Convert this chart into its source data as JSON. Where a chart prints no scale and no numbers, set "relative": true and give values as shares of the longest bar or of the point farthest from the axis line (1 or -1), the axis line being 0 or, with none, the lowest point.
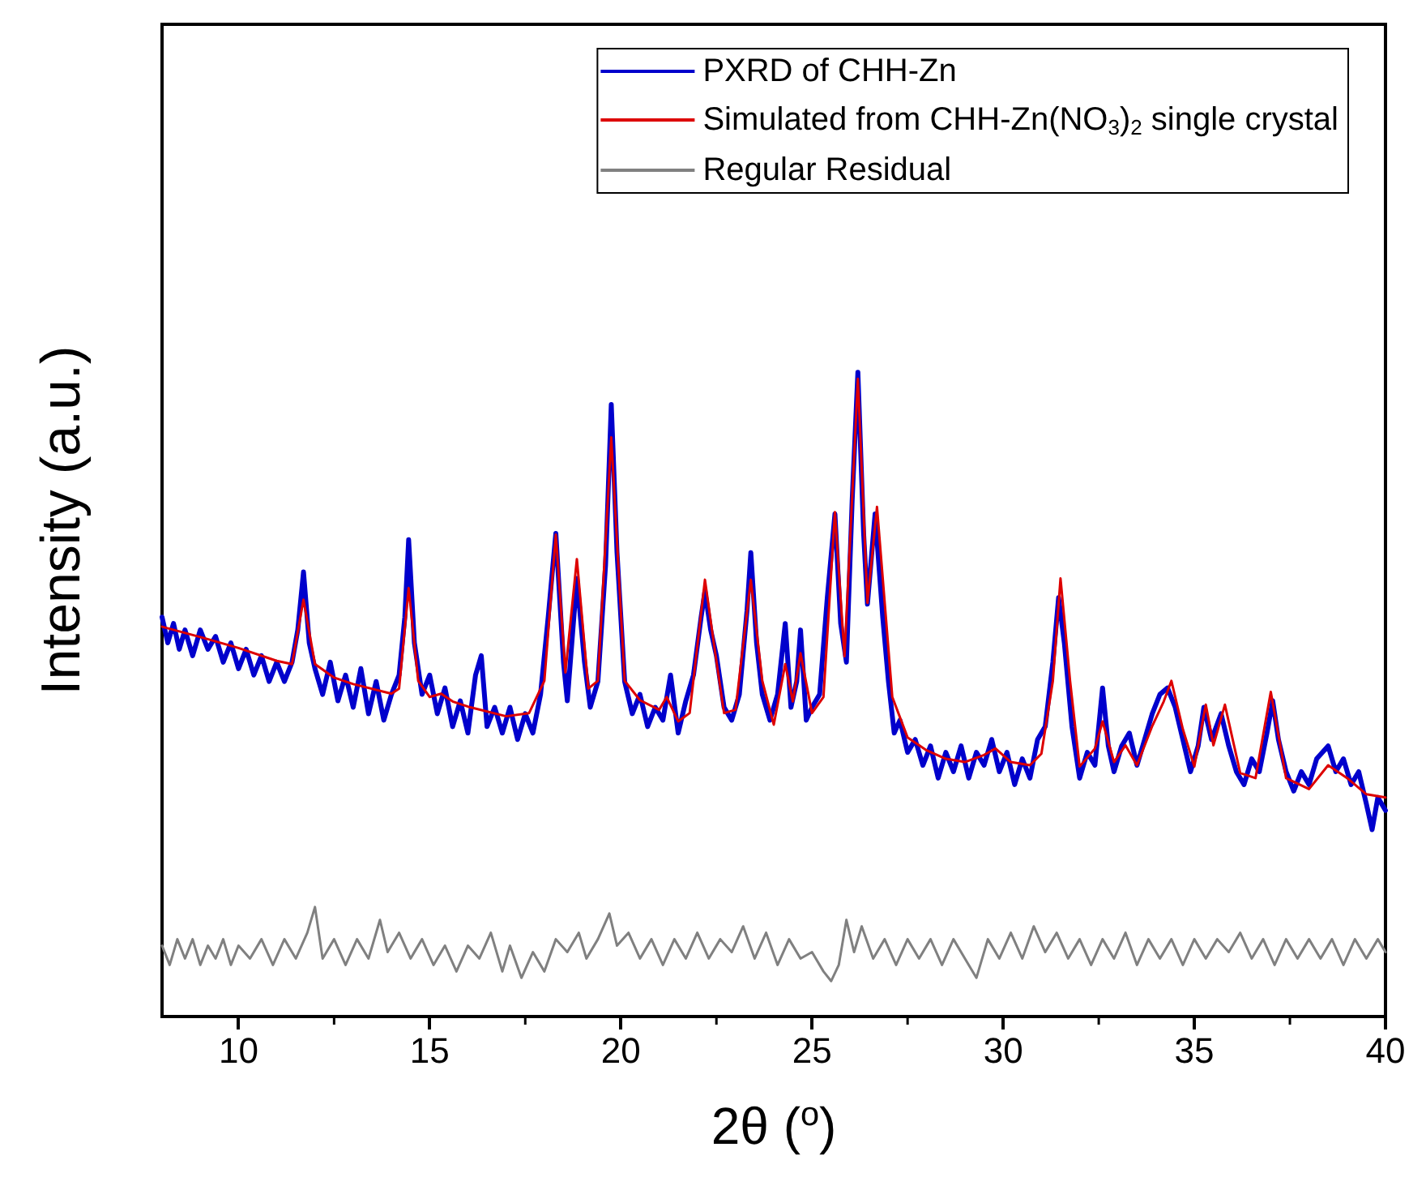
{
  "chart_data": {
    "type": "line",
    "xlabel": "2θ ($^{o}$)",
    "ylabel": "Intensity (a.u.)",
    "relative": true,
    "xlim": [
      8,
      40
    ],
    "xticks": [
      10,
      15,
      20,
      25,
      30,
      35,
      40
    ],
    "legend": "top right",
    "marker": "none",
    "line_style": "solid",
    "series": [
      {
        "name": "PXRD of CHH-Zn",
        "color": "#0000cc",
        "x": [
          8.0,
          8.15,
          8.3,
          8.45,
          8.6,
          8.8,
          9.0,
          9.2,
          9.4,
          9.6,
          9.8,
          10.0,
          10.2,
          10.4,
          10.6,
          10.8,
          11.0,
          11.2,
          11.4,
          11.55,
          11.7,
          11.85,
          12.0,
          12.2,
          12.4,
          12.6,
          12.8,
          13.0,
          13.2,
          13.4,
          13.6,
          13.8,
          14.0,
          14.2,
          14.35,
          14.45,
          14.6,
          14.8,
          15.0,
          15.2,
          15.4,
          15.6,
          15.8,
          16.0,
          16.2,
          16.35,
          16.5,
          16.7,
          16.9,
          17.1,
          17.3,
          17.5,
          17.7,
          17.9,
          18.1,
          18.3,
          18.5,
          18.6,
          18.85,
          19.05,
          19.2,
          19.4,
          19.6,
          19.75,
          19.9,
          20.1,
          20.3,
          20.5,
          20.7,
          20.9,
          21.1,
          21.3,
          21.5,
          21.7,
          21.9,
          22.1,
          22.2,
          22.35,
          22.5,
          22.7,
          22.9,
          23.1,
          23.3,
          23.4,
          23.55,
          23.7,
          23.9,
          24.1,
          24.3,
          24.45,
          24.6,
          24.7,
          24.85,
          25.0,
          25.2,
          25.4,
          25.6,
          25.75,
          25.9,
          26.05,
          26.2,
          26.35,
          26.45,
          26.65,
          26.85,
          27.0,
          27.15,
          27.3,
          27.5,
          27.7,
          27.9,
          28.1,
          28.3,
          28.5,
          28.7,
          28.9,
          29.1,
          29.3,
          29.5,
          29.7,
          29.9,
          30.1,
          30.3,
          30.5,
          30.7,
          30.9,
          31.1,
          31.3,
          31.45,
          31.6,
          31.8,
          32.0,
          32.2,
          32.4,
          32.6,
          32.75,
          32.9,
          33.1,
          33.3,
          33.5,
          33.7,
          33.9,
          34.1,
          34.3,
          34.5,
          34.7,
          34.9,
          35.1,
          35.25,
          35.45,
          35.7,
          35.9,
          36.1,
          36.3,
          36.5,
          36.7,
          36.9,
          37.05,
          37.2,
          37.4,
          37.6,
          37.8,
          38.0,
          38.2,
          38.5,
          38.7,
          38.9,
          39.1,
          39.3,
          39.5,
          39.65,
          39.8,
          40.0
        ],
        "values": [
          0.62,
          0.58,
          0.61,
          0.57,
          0.6,
          0.56,
          0.6,
          0.57,
          0.59,
          0.55,
          0.58,
          0.54,
          0.57,
          0.53,
          0.56,
          0.52,
          0.55,
          0.52,
          0.55,
          0.6,
          0.69,
          0.58,
          0.54,
          0.5,
          0.55,
          0.49,
          0.53,
          0.48,
          0.54,
          0.47,
          0.52,
          0.46,
          0.5,
          0.53,
          0.62,
          0.74,
          0.58,
          0.5,
          0.53,
          0.47,
          0.51,
          0.45,
          0.49,
          0.44,
          0.53,
          0.56,
          0.45,
          0.48,
          0.44,
          0.48,
          0.43,
          0.47,
          0.44,
          0.5,
          0.62,
          0.75,
          0.55,
          0.49,
          0.68,
          0.55,
          0.48,
          0.52,
          0.7,
          0.95,
          0.72,
          0.52,
          0.47,
          0.5,
          0.45,
          0.48,
          0.46,
          0.53,
          0.44,
          0.49,
          0.53,
          0.62,
          0.66,
          0.6,
          0.56,
          0.48,
          0.46,
          0.5,
          0.63,
          0.72,
          0.58,
          0.5,
          0.46,
          0.5,
          0.61,
          0.48,
          0.52,
          0.6,
          0.46,
          0.48,
          0.5,
          0.65,
          0.78,
          0.61,
          0.55,
          0.8,
          1.0,
          0.75,
          0.64,
          0.78,
          0.62,
          0.52,
          0.44,
          0.46,
          0.41,
          0.43,
          0.39,
          0.42,
          0.37,
          0.41,
          0.38,
          0.42,
          0.37,
          0.41,
          0.39,
          0.43,
          0.38,
          0.41,
          0.36,
          0.4,
          0.37,
          0.43,
          0.45,
          0.55,
          0.65,
          0.58,
          0.45,
          0.37,
          0.41,
          0.39,
          0.51,
          0.42,
          0.38,
          0.42,
          0.44,
          0.39,
          0.43,
          0.47,
          0.5,
          0.51,
          0.48,
          0.43,
          0.38,
          0.42,
          0.48,
          0.43,
          0.47,
          0.42,
          0.38,
          0.36,
          0.4,
          0.38,
          0.44,
          0.49,
          0.43,
          0.38,
          0.35,
          0.38,
          0.36,
          0.4,
          0.42,
          0.38,
          0.4,
          0.36,
          0.38,
          0.33,
          0.29,
          0.34,
          0.32
        ]
      },
      {
        "name": "Simulated from CHH-Zn(NO$_{3}$)$_{2}$ single crystal",
        "color": "#dd0000",
        "x": [
          8,
          9,
          10,
          11,
          11.4,
          11.7,
          12.0,
          12.5,
          13,
          14,
          14.2,
          14.45,
          14.7,
          15.0,
          15.3,
          15.6,
          16,
          17,
          17.6,
          18.0,
          18.3,
          18.55,
          18.85,
          19.15,
          19.4,
          19.75,
          20.1,
          20.5,
          21,
          21.2,
          21.5,
          21.8,
          22.2,
          22.45,
          22.7,
          23.0,
          23.4,
          23.7,
          24.0,
          24.3,
          24.5,
          24.7,
          25.0,
          25.3,
          25.6,
          25.85,
          26.2,
          26.45,
          26.7,
          27.1,
          27.5,
          28,
          28.5,
          29,
          29.5,
          29.8,
          30.2,
          30.7,
          31.0,
          31.3,
          31.5,
          31.75,
          32.0,
          32.4,
          32.6,
          32.9,
          33.2,
          33.5,
          33.9,
          34.2,
          34.4,
          34.7,
          35.0,
          35.3,
          35.5,
          35.8,
          36.2,
          36.6,
          37.0,
          37.4,
          38.0,
          38.5,
          39.0,
          39.5,
          40
        ],
        "values": [
          0.605,
          0.589,
          0.572,
          0.552,
          0.547,
          0.647,
          0.547,
          0.526,
          0.516,
          0.501,
          0.509,
          0.665,
          0.521,
          0.496,
          0.501,
          0.489,
          0.481,
          0.466,
          0.471,
          0.521,
          0.748,
          0.534,
          0.71,
          0.509,
          0.521,
          0.899,
          0.521,
          0.491,
          0.476,
          0.496,
          0.458,
          0.471,
          0.678,
          0.572,
          0.471,
          0.476,
          0.678,
          0.521,
          0.453,
          0.547,
          0.489,
          0.564,
          0.471,
          0.496,
          0.783,
          0.559,
          0.99,
          0.642,
          0.791,
          0.496,
          0.433,
          0.413,
          0.4,
          0.395,
          0.406,
          0.416,
          0.395,
          0.39,
          0.408,
          0.521,
          0.68,
          0.521,
          0.388,
          0.416,
          0.458,
          0.395,
          0.421,
          0.39,
          0.451,
          0.489,
          0.521,
          0.446,
          0.388,
          0.484,
          0.421,
          0.484,
          0.378,
          0.37,
          0.504,
          0.37,
          0.353,
          0.39,
          0.37,
          0.345,
          0.34
        ]
      },
      {
        "name": "Regular Residual",
        "color": "#808080",
        "x": [
          8.0,
          8.2,
          8.4,
          8.6,
          8.8,
          9.0,
          9.2,
          9.4,
          9.6,
          9.8,
          10.0,
          10.3,
          10.6,
          10.9,
          11.2,
          11.5,
          11.8,
          12.0,
          12.2,
          12.5,
          12.8,
          13.1,
          13.4,
          13.7,
          13.9,
          14.2,
          14.5,
          14.8,
          15.1,
          15.4,
          15.7,
          16.0,
          16.3,
          16.6,
          16.9,
          17.1,
          17.4,
          17.7,
          18.0,
          18.3,
          18.6,
          18.9,
          19.1,
          19.4,
          19.7,
          19.9,
          20.2,
          20.5,
          20.8,
          21.1,
          21.4,
          21.7,
          22.0,
          22.3,
          22.6,
          22.9,
          23.2,
          23.5,
          23.8,
          24.1,
          24.4,
          24.7,
          25.0,
          25.3,
          25.5,
          25.7,
          25.9,
          26.1,
          26.3,
          26.6,
          26.9,
          27.2,
          27.5,
          27.8,
          28.1,
          28.4,
          28.7,
          29.0,
          29.3,
          29.6,
          29.9,
          30.2,
          30.5,
          30.8,
          31.1,
          31.4,
          31.7,
          32.0,
          32.3,
          32.6,
          32.9,
          33.2,
          33.5,
          33.8,
          34.1,
          34.4,
          34.7,
          35.0,
          35.3,
          35.6,
          35.9,
          36.2,
          36.5,
          36.8,
          37.1,
          37.4,
          37.7,
          38.0,
          38.3,
          38.6,
          38.9,
          39.2,
          39.5,
          39.8,
          40.0
        ],
        "values": [
          0.11,
          0.08,
          0.12,
          0.09,
          0.12,
          0.08,
          0.11,
          0.09,
          0.12,
          0.08,
          0.11,
          0.09,
          0.12,
          0.08,
          0.12,
          0.09,
          0.13,
          0.17,
          0.09,
          0.12,
          0.08,
          0.12,
          0.09,
          0.15,
          0.1,
          0.13,
          0.09,
          0.12,
          0.08,
          0.11,
          0.07,
          0.11,
          0.09,
          0.13,
          0.07,
          0.11,
          0.06,
          0.1,
          0.07,
          0.12,
          0.1,
          0.13,
          0.09,
          0.12,
          0.16,
          0.11,
          0.13,
          0.09,
          0.12,
          0.08,
          0.12,
          0.09,
          0.13,
          0.09,
          0.12,
          0.1,
          0.14,
          0.09,
          0.13,
          0.08,
          0.12,
          0.09,
          0.1,
          0.07,
          0.055,
          0.08,
          0.15,
          0.1,
          0.14,
          0.09,
          0.12,
          0.08,
          0.12,
          0.09,
          0.12,
          0.08,
          0.12,
          0.09,
          0.06,
          0.12,
          0.09,
          0.13,
          0.09,
          0.14,
          0.1,
          0.13,
          0.09,
          0.12,
          0.08,
          0.12,
          0.09,
          0.13,
          0.08,
          0.12,
          0.09,
          0.12,
          0.08,
          0.12,
          0.09,
          0.12,
          0.1,
          0.13,
          0.09,
          0.12,
          0.08,
          0.12,
          0.09,
          0.12,
          0.09,
          0.12,
          0.08,
          0.12,
          0.09,
          0.12,
          0.1
        ]
      }
    ]
  }
}
